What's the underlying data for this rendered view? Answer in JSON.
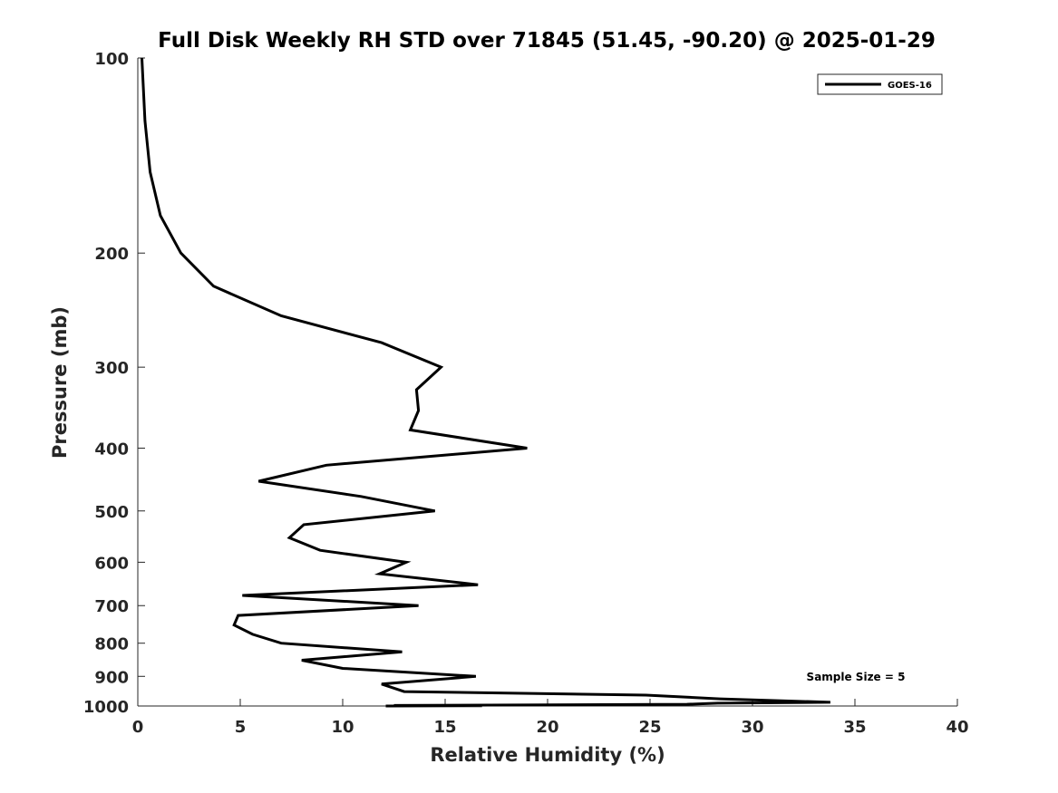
{
  "chart_data": {
    "type": "line",
    "title": "Full Disk Weekly RH STD over 71845 (51.45, -90.20) @ 2025-01-29",
    "xlabel": "Relative Humidity (%)",
    "ylabel": "Pressure (mb)",
    "xlim": [
      0,
      40
    ],
    "ylim": [
      100,
      1000
    ],
    "y_scale": "log",
    "y_reversed": true,
    "grid": false,
    "legend": "top-right",
    "x_ticks": [
      0,
      5,
      10,
      15,
      20,
      25,
      30,
      35,
      40
    ],
    "y_ticks": [
      100,
      200,
      300,
      400,
      500,
      600,
      700,
      800,
      900,
      1000
    ],
    "series": [
      {
        "name": "GOES-16",
        "color": "#000000",
        "points": [
          [
            0.2,
            100
          ],
          [
            0.35,
            125
          ],
          [
            0.6,
            150
          ],
          [
            1.1,
            175
          ],
          [
            2.1,
            200
          ],
          [
            3.7,
            225
          ],
          [
            7.0,
            250
          ],
          [
            11.9,
            275
          ],
          [
            14.8,
            300
          ],
          [
            13.6,
            325
          ],
          [
            13.7,
            350
          ],
          [
            13.3,
            375
          ],
          [
            19.0,
            400
          ],
          [
            9.2,
            425
          ],
          [
            5.9,
            450
          ],
          [
            10.9,
            475
          ],
          [
            14.5,
            500
          ],
          [
            8.1,
            525
          ],
          [
            7.4,
            550
          ],
          [
            8.9,
            575
          ],
          [
            13.1,
            600
          ],
          [
            11.8,
            625
          ],
          [
            16.6,
            650
          ],
          [
            5.1,
            675
          ],
          [
            13.7,
            700
          ],
          [
            4.9,
            725
          ],
          [
            4.7,
            750
          ],
          [
            5.6,
            775
          ],
          [
            7.0,
            800
          ],
          [
            12.9,
            825
          ],
          [
            8.0,
            850
          ],
          [
            10.0,
            875
          ],
          [
            16.5,
            900
          ],
          [
            11.9,
            925
          ],
          [
            13.0,
            950
          ],
          [
            24.8,
            962
          ],
          [
            28.4,
            975
          ],
          [
            33.8,
            987
          ],
          [
            28.3,
            990
          ],
          [
            26.8,
            994
          ],
          [
            12.5,
            998
          ],
          [
            16.8,
            999
          ],
          [
            12.1,
            1000
          ]
        ]
      }
    ],
    "annotations": [
      {
        "text": "Sample Size = 5",
        "x": 35.5,
        "y": 900
      }
    ]
  }
}
